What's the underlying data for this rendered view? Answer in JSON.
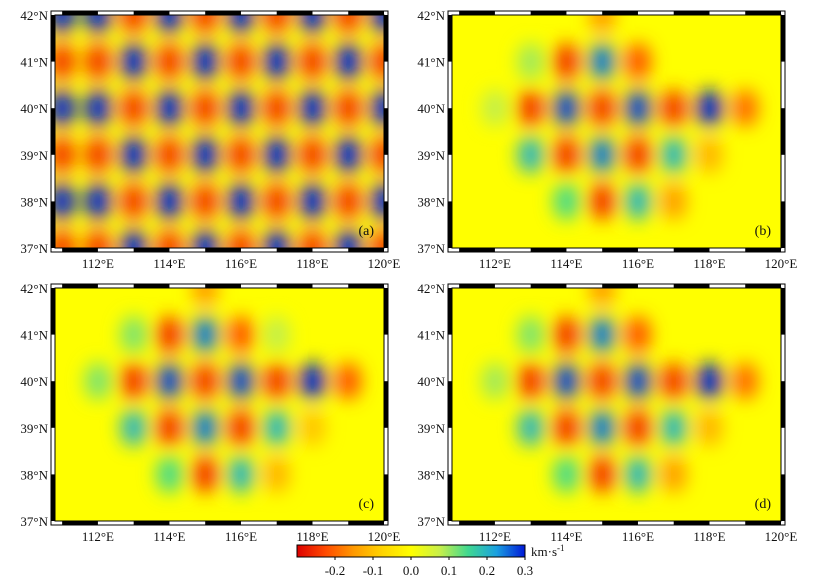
{
  "colors": {
    "colormap": [
      "#dd0000",
      "#ff4a00",
      "#ff9a00",
      "#ffd400",
      "#ffff00",
      "#c8f04a",
      "#40d890",
      "#1aa0e0",
      "#0018d8"
    ],
    "background_field": "#ffff00",
    "frame": "#000000"
  },
  "chart_data": [
    {
      "type": "heatmap",
      "panel_label": "(a)",
      "x_ticks": [
        "112°E",
        "114°E",
        "116°E",
        "118°E",
        "120°E"
      ],
      "y_ticks": [
        "42°N",
        "41°N",
        "40°N",
        "39°N",
        "38°N",
        "37°N"
      ],
      "xlim": [
        110.8,
        120
      ],
      "ylim": [
        37,
        42
      ],
      "x_tick_values": [
        112,
        114,
        116,
        118,
        120
      ],
      "y_tick_values": [
        42,
        41,
        40,
        39,
        38,
        37
      ],
      "description_of_field": "checkerboard",
      "anomalies": [
        {
          "lon": 111,
          "lat": 41,
          "v": -0.25
        },
        {
          "lon": 112,
          "lat": 41,
          "v": -0.25
        },
        {
          "lon": 113,
          "lat": 41,
          "v": 0.3
        },
        {
          "lon": 114,
          "lat": 41,
          "v": -0.25
        },
        {
          "lon": 115,
          "lat": 41,
          "v": 0.3
        },
        {
          "lon": 116,
          "lat": 41,
          "v": -0.25
        },
        {
          "lon": 117,
          "lat": 41,
          "v": 0.3
        },
        {
          "lon": 118,
          "lat": 41,
          "v": -0.25
        },
        {
          "lon": 119,
          "lat": 41,
          "v": 0.3
        },
        {
          "lon": 120,
          "lat": 41,
          "v": -0.25
        },
        {
          "lon": 111,
          "lat": 40,
          "v": 0.3
        },
        {
          "lon": 112,
          "lat": 40,
          "v": 0.3
        },
        {
          "lon": 113,
          "lat": 40,
          "v": -0.25
        },
        {
          "lon": 114,
          "lat": 40,
          "v": 0.3
        },
        {
          "lon": 115,
          "lat": 40,
          "v": -0.25
        },
        {
          "lon": 116,
          "lat": 40,
          "v": 0.3
        },
        {
          "lon": 117,
          "lat": 40,
          "v": -0.25
        },
        {
          "lon": 118,
          "lat": 40,
          "v": 0.3
        },
        {
          "lon": 119,
          "lat": 40,
          "v": -0.25
        },
        {
          "lon": 120,
          "lat": 40,
          "v": 0.3
        },
        {
          "lon": 111,
          "lat": 39,
          "v": -0.25
        },
        {
          "lon": 112,
          "lat": 39,
          "v": -0.25
        },
        {
          "lon": 113,
          "lat": 39,
          "v": 0.3
        },
        {
          "lon": 114,
          "lat": 39,
          "v": -0.25
        },
        {
          "lon": 115,
          "lat": 39,
          "v": 0.3
        },
        {
          "lon": 116,
          "lat": 39,
          "v": -0.25
        },
        {
          "lon": 117,
          "lat": 39,
          "v": 0.3
        },
        {
          "lon": 118,
          "lat": 39,
          "v": -0.25
        },
        {
          "lon": 119,
          "lat": 39,
          "v": 0.3
        },
        {
          "lon": 120,
          "lat": 39,
          "v": -0.25
        },
        {
          "lon": 111,
          "lat": 38,
          "v": 0.3
        },
        {
          "lon": 112,
          "lat": 38,
          "v": 0.3
        },
        {
          "lon": 113,
          "lat": 38,
          "v": -0.25
        },
        {
          "lon": 114,
          "lat": 38,
          "v": 0.3
        },
        {
          "lon": 115,
          "lat": 38,
          "v": -0.25
        },
        {
          "lon": 116,
          "lat": 38,
          "v": 0.3
        },
        {
          "lon": 117,
          "lat": 38,
          "v": -0.25
        },
        {
          "lon": 118,
          "lat": 38,
          "v": 0.3
        },
        {
          "lon": 119,
          "lat": 38,
          "v": -0.25
        },
        {
          "lon": 120,
          "lat": 38,
          "v": 0.3
        },
        {
          "lon": 111,
          "lat": 42,
          "v": 0.3
        },
        {
          "lon": 112,
          "lat": 42,
          "v": 0.3
        },
        {
          "lon": 113,
          "lat": 42,
          "v": -0.25
        },
        {
          "lon": 114,
          "lat": 42,
          "v": 0.3
        },
        {
          "lon": 115,
          "lat": 42,
          "v": -0.25
        },
        {
          "lon": 116,
          "lat": 42,
          "v": 0.3
        },
        {
          "lon": 117,
          "lat": 42,
          "v": -0.25
        },
        {
          "lon": 118,
          "lat": 42,
          "v": 0.3
        },
        {
          "lon": 119,
          "lat": 42,
          "v": -0.25
        },
        {
          "lon": 120,
          "lat": 42,
          "v": 0.3
        },
        {
          "lon": 111,
          "lat": 37,
          "v": -0.25
        },
        {
          "lon": 112,
          "lat": 37,
          "v": -0.25
        },
        {
          "lon": 113,
          "lat": 37,
          "v": 0.3
        },
        {
          "lon": 114,
          "lat": 37,
          "v": -0.25
        },
        {
          "lon": 115,
          "lat": 37,
          "v": 0.3
        },
        {
          "lon": 116,
          "lat": 37,
          "v": -0.25
        },
        {
          "lon": 117,
          "lat": 37,
          "v": 0.3
        },
        {
          "lon": 118,
          "lat": 37,
          "v": -0.25
        },
        {
          "lon": 119,
          "lat": 37,
          "v": 0.3
        },
        {
          "lon": 120,
          "lat": 37,
          "v": -0.25
        }
      ]
    },
    {
      "type": "heatmap",
      "panel_label": "(b)",
      "x_ticks": [
        "112°E",
        "114°E",
        "116°E",
        "118°E",
        "120°E"
      ],
      "y_ticks": [
        "42°N",
        "41°N",
        "40°N",
        "39°N",
        "38°N",
        "37°N"
      ],
      "xlim": [
        110.8,
        120
      ],
      "ylim": [
        37,
        42
      ],
      "x_tick_values": [
        112,
        114,
        116,
        118,
        120
      ],
      "y_tick_values": [
        42,
        41,
        40,
        39,
        38,
        37
      ],
      "anomalies": [
        {
          "lon": 114,
          "lat": 41,
          "v": -0.25
        },
        {
          "lon": 115,
          "lat": 41,
          "v": 0.25
        },
        {
          "lon": 116,
          "lat": 41,
          "v": -0.22
        },
        {
          "lon": 113,
          "lat": 41,
          "v": 0.1
        },
        {
          "lon": 115,
          "lat": 42,
          "v": -0.15
        },
        {
          "lon": 113,
          "lat": 40,
          "v": -0.25
        },
        {
          "lon": 114,
          "lat": 40,
          "v": 0.28
        },
        {
          "lon": 115,
          "lat": 40,
          "v": -0.25
        },
        {
          "lon": 116,
          "lat": 40,
          "v": 0.28
        },
        {
          "lon": 117,
          "lat": 40,
          "v": -0.25
        },
        {
          "lon": 118,
          "lat": 40,
          "v": 0.3
        },
        {
          "lon": 119,
          "lat": 40,
          "v": -0.2
        },
        {
          "lon": 112,
          "lat": 40,
          "v": 0.08
        },
        {
          "lon": 113,
          "lat": 39,
          "v": 0.2
        },
        {
          "lon": 114,
          "lat": 39,
          "v": -0.25
        },
        {
          "lon": 115,
          "lat": 39,
          "v": 0.25
        },
        {
          "lon": 116,
          "lat": 39,
          "v": -0.25
        },
        {
          "lon": 117,
          "lat": 39,
          "v": 0.2
        },
        {
          "lon": 118,
          "lat": 39,
          "v": -0.12
        },
        {
          "lon": 114,
          "lat": 38,
          "v": 0.15
        },
        {
          "lon": 115,
          "lat": 38,
          "v": -0.25
        },
        {
          "lon": 116,
          "lat": 38,
          "v": 0.2
        },
        {
          "lon": 117,
          "lat": 38,
          "v": -0.15
        }
      ]
    },
    {
      "type": "heatmap",
      "panel_label": "(c)",
      "x_ticks": [
        "112°E",
        "114°E",
        "116°E",
        "118°E",
        "120°E"
      ],
      "y_ticks": [
        "42°N",
        "41°N",
        "40°N",
        "39°N",
        "38°N",
        "37°N"
      ],
      "xlim": [
        110.8,
        120
      ],
      "ylim": [
        37,
        42
      ],
      "x_tick_values": [
        112,
        114,
        116,
        118,
        120
      ],
      "y_tick_values": [
        42,
        41,
        40,
        39,
        38,
        37
      ],
      "anomalies": [
        {
          "lon": 114,
          "lat": 41,
          "v": -0.25
        },
        {
          "lon": 115,
          "lat": 41,
          "v": 0.25
        },
        {
          "lon": 116,
          "lat": 41,
          "v": -0.22
        },
        {
          "lon": 113,
          "lat": 41,
          "v": 0.12
        },
        {
          "lon": 115,
          "lat": 42,
          "v": -0.15
        },
        {
          "lon": 117,
          "lat": 41,
          "v": 0.08
        },
        {
          "lon": 113,
          "lat": 40,
          "v": -0.25
        },
        {
          "lon": 114,
          "lat": 40,
          "v": 0.28
        },
        {
          "lon": 115,
          "lat": 40,
          "v": -0.25
        },
        {
          "lon": 116,
          "lat": 40,
          "v": 0.28
        },
        {
          "lon": 117,
          "lat": 40,
          "v": -0.25
        },
        {
          "lon": 118,
          "lat": 40,
          "v": 0.3
        },
        {
          "lon": 119,
          "lat": 40,
          "v": -0.22
        },
        {
          "lon": 112,
          "lat": 40,
          "v": 0.12
        },
        {
          "lon": 113,
          "lat": 39,
          "v": 0.2
        },
        {
          "lon": 114,
          "lat": 39,
          "v": -0.25
        },
        {
          "lon": 115,
          "lat": 39,
          "v": 0.25
        },
        {
          "lon": 116,
          "lat": 39,
          "v": -0.25
        },
        {
          "lon": 117,
          "lat": 39,
          "v": 0.2
        },
        {
          "lon": 118,
          "lat": 39,
          "v": -0.1
        },
        {
          "lon": 114,
          "lat": 38,
          "v": 0.15
        },
        {
          "lon": 115,
          "lat": 38,
          "v": -0.25
        },
        {
          "lon": 116,
          "lat": 38,
          "v": 0.2
        },
        {
          "lon": 117,
          "lat": 38,
          "v": -0.12
        }
      ]
    },
    {
      "type": "heatmap",
      "panel_label": "(d)",
      "x_ticks": [
        "112°E",
        "114°E",
        "116°E",
        "118°E",
        "120°E"
      ],
      "y_ticks": [
        "42°N",
        "41°N",
        "40°N",
        "39°N",
        "38°N",
        "37°N"
      ],
      "xlim": [
        110.8,
        120
      ],
      "ylim": [
        37,
        42
      ],
      "x_tick_values": [
        112,
        114,
        116,
        118,
        120
      ],
      "y_tick_values": [
        42,
        41,
        40,
        39,
        38,
        37
      ],
      "anomalies": [
        {
          "lon": 114,
          "lat": 41,
          "v": -0.25
        },
        {
          "lon": 115,
          "lat": 41,
          "v": 0.25
        },
        {
          "lon": 116,
          "lat": 41,
          "v": -0.22
        },
        {
          "lon": 113,
          "lat": 41,
          "v": 0.12
        },
        {
          "lon": 115,
          "lat": 42,
          "v": -0.15
        },
        {
          "lon": 113,
          "lat": 40,
          "v": -0.25
        },
        {
          "lon": 114,
          "lat": 40,
          "v": 0.28
        },
        {
          "lon": 115,
          "lat": 40,
          "v": -0.25
        },
        {
          "lon": 116,
          "lat": 40,
          "v": 0.28
        },
        {
          "lon": 117,
          "lat": 40,
          "v": -0.25
        },
        {
          "lon": 118,
          "lat": 40,
          "v": 0.3
        },
        {
          "lon": 119,
          "lat": 40,
          "v": -0.2
        },
        {
          "lon": 112,
          "lat": 40,
          "v": 0.1
        },
        {
          "lon": 113,
          "lat": 39,
          "v": 0.2
        },
        {
          "lon": 114,
          "lat": 39,
          "v": -0.25
        },
        {
          "lon": 115,
          "lat": 39,
          "v": 0.25
        },
        {
          "lon": 116,
          "lat": 39,
          "v": -0.25
        },
        {
          "lon": 117,
          "lat": 39,
          "v": 0.2
        },
        {
          "lon": 118,
          "lat": 39,
          "v": -0.12
        },
        {
          "lon": 114,
          "lat": 38,
          "v": 0.15
        },
        {
          "lon": 115,
          "lat": 38,
          "v": -0.25
        },
        {
          "lon": 116,
          "lat": 38,
          "v": 0.2
        },
        {
          "lon": 117,
          "lat": 38,
          "v": -0.15
        }
      ]
    }
  ],
  "colorbar": {
    "ticks": [
      "-0.2",
      "-0.1",
      "0.0",
      "0.1",
      "0.2",
      "0.3"
    ],
    "tick_values": [
      -0.2,
      -0.1,
      0.0,
      0.1,
      0.2,
      0.3
    ],
    "range": [
      -0.3,
      0.3
    ],
    "unit": "km·s",
    "unit_superscript": "-1"
  }
}
